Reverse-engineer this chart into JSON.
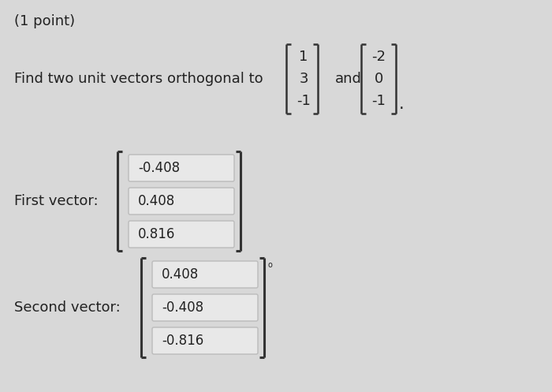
{
  "background_color": "#d8d8d8",
  "title_text": "(1 point)",
  "problem_text": "Find two unit vectors orthogonal to",
  "vec1": [
    "1",
    "3",
    "-1"
  ],
  "vec2": [
    "-2",
    "0",
    "-1"
  ],
  "and_text": "and",
  "first_label": "First vector:",
  "first_values": [
    "-0.408",
    "0.408",
    "0.816"
  ],
  "second_label": "Second vector:",
  "second_values": [
    "0.408",
    "-0.408",
    "-0.816"
  ],
  "box_facecolor": "#e8e8e8",
  "box_edgecolor": "#bbbbbb",
  "text_color": "#222222",
  "bracket_color": "#333333",
  "font_size": 13
}
